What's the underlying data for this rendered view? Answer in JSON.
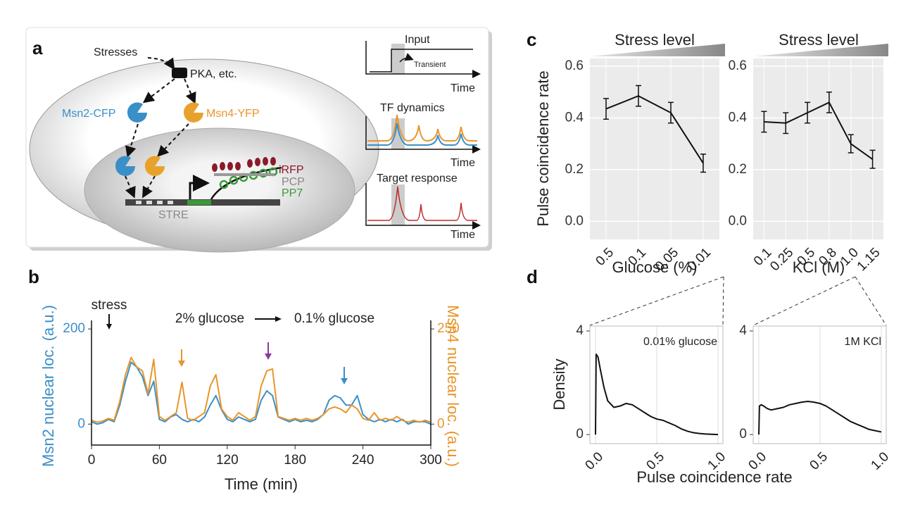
{
  "panels": [
    "a",
    "b",
    "c",
    "d"
  ],
  "diagram": {
    "stresses": "Stresses",
    "kinase": "PKA, etc.",
    "msn2": "Msn2-CFP",
    "msn4": "Msn4-YFP",
    "irfp": "iRFP",
    "pcp": "PCP",
    "pp7": "PP7",
    "stre": "STRE",
    "input": "Input",
    "transient": "Transient",
    "tf_dynamics": "TF dynamics",
    "target_response": "Target response",
    "time_axis": [
      "Time",
      "Time",
      "Time"
    ]
  },
  "chart_data": [
    {
      "type": "line",
      "xlabel": "Time (min)",
      "ylabel": "Msn2 nuclear loc. (a.u.)",
      "y2label": "Msn4 nuclear loc. (a.u.)",
      "annotations": [
        "stress",
        "2% glucose",
        "0.1% glucose"
      ],
      "x": [
        0,
        5,
        10,
        15,
        20,
        25,
        30,
        35,
        40,
        45,
        50,
        55,
        60,
        65,
        70,
        75,
        80,
        85,
        90,
        95,
        100,
        105,
        110,
        115,
        120,
        125,
        130,
        135,
        140,
        145,
        150,
        155,
        160,
        165,
        170,
        175,
        180,
        185,
        190,
        195,
        200,
        205,
        210,
        215,
        220,
        225,
        230,
        235,
        240,
        245,
        250,
        255,
        260,
        265,
        270,
        275,
        280,
        285,
        290,
        295,
        300
      ],
      "series": [
        {
          "name": "Msn2",
          "color": "#3a8fc8",
          "values": [
            5,
            0,
            3,
            10,
            5,
            40,
            90,
            130,
            120,
            100,
            60,
            90,
            10,
            5,
            15,
            20,
            10,
            5,
            10,
            5,
            15,
            40,
            60,
            30,
            10,
            5,
            15,
            10,
            5,
            10,
            50,
            70,
            60,
            15,
            10,
            5,
            10,
            5,
            8,
            5,
            10,
            20,
            50,
            60,
            55,
            40,
            40,
            60,
            20,
            10,
            5,
            10,
            5,
            10,
            5,
            10,
            0,
            5,
            5,
            5,
            0
          ]
        },
        {
          "name": "Msn4",
          "color": "#e8952b",
          "axis": "y2",
          "values": [
            10,
            5,
            8,
            15,
            10,
            60,
            130,
            175,
            150,
            140,
            80,
            170,
            20,
            10,
            20,
            30,
            110,
            15,
            10,
            20,
            30,
            100,
            130,
            40,
            20,
            10,
            30,
            20,
            10,
            20,
            100,
            140,
            145,
            20,
            15,
            10,
            15,
            10,
            15,
            10,
            15,
            25,
            40,
            45,
            40,
            30,
            50,
            40,
            15,
            10,
            30,
            10,
            15,
            10,
            20,
            10,
            5,
            10,
            5,
            10,
            5
          ]
        }
      ],
      "xlim": [
        0,
        300
      ],
      "xticks": [
        0,
        60,
        120,
        180,
        240,
        300
      ],
      "ylim": [
        -44,
        218
      ],
      "yticks": [
        0,
        200
      ],
      "y2lim": [
        -55,
        272.5
      ],
      "y2ticks": [
        0,
        250
      ],
      "grid": false
    },
    {
      "type": "line",
      "title": "Stress level",
      "xlabel": "Glucose (%)",
      "ylabel": "Pulse coincidence rate",
      "categories": [
        "0.5",
        "0.1",
        "0.05",
        "0.01"
      ],
      "values": [
        0.435,
        0.485,
        0.42,
        0.225
      ],
      "errors": [
        0.04,
        0.04,
        0.04,
        0.035
      ],
      "color": "#111111",
      "ylim": [
        -0.07,
        0.63
      ],
      "yticks": [
        {
          "value": 0,
          "label": "0.0"
        },
        0.2,
        0.4,
        0.6
      ],
      "grid": true,
      "background": "#ebebeb",
      "grid_color": "#ffffff",
      "xtick_rotation": 45
    },
    {
      "type": "line",
      "title": "Stress level",
      "xlabel": "KCl (M)",
      "categories": [
        "0.1",
        "0.25",
        "0.5",
        "0.8",
        "1.0",
        "1.15"
      ],
      "values": [
        0.385,
        0.38,
        0.42,
        0.46,
        0.3,
        0.24
      ],
      "errors": [
        0.04,
        0.04,
        0.04,
        0.04,
        0.035,
        0.035
      ],
      "color": "#111111",
      "ylim": [
        -0.07,
        0.63
      ],
      "yticks": [
        {
          "value": 0,
          "label": "0.0"
        },
        0.2,
        0.4,
        0.6
      ],
      "grid": true,
      "background": "#ebebeb",
      "grid_color": "#ffffff",
      "xtick_rotation": 45
    },
    {
      "type": "line",
      "xlabel": "Pulse coincidence rate",
      "ylabel": "Density",
      "annotation": "0.01% glucose",
      "x": [
        0,
        0.005,
        0.02,
        0.04,
        0.07,
        0.1,
        0.15,
        0.2,
        0.25,
        0.3,
        0.35,
        0.4,
        0.45,
        0.5,
        0.55,
        0.6,
        0.65,
        0.7,
        0.75,
        0.8,
        0.85,
        0.9,
        0.95,
        1.0
      ],
      "values": [
        0,
        3.1,
        3.0,
        2.5,
        1.8,
        1.3,
        1.05,
        1.1,
        1.2,
        1.15,
        1.0,
        0.85,
        0.7,
        0.6,
        0.55,
        0.45,
        0.35,
        0.22,
        0.13,
        0.07,
        0.04,
        0.02,
        0.01,
        0.0
      ],
      "color": "#111111",
      "xlim": [
        -0.046,
        1.04
      ],
      "xticks": [
        {
          "value": 0,
          "label": "0.0"
        },
        0.5,
        {
          "value": 1,
          "label": "1.0"
        }
      ],
      "ylim": [
        -0.35,
        4.19
      ],
      "yticks": [
        0,
        4
      ],
      "grid": "x",
      "grid_color": "#dddddd",
      "xtick_rotation": 45
    },
    {
      "type": "line",
      "annotation": "1M KCl",
      "x": [
        0,
        0.005,
        0.02,
        0.04,
        0.07,
        0.1,
        0.15,
        0.2,
        0.25,
        0.3,
        0.35,
        0.4,
        0.45,
        0.5,
        0.55,
        0.6,
        0.65,
        0.7,
        0.75,
        0.8,
        0.85,
        0.9,
        0.95,
        1.0
      ],
      "values": [
        0,
        1.1,
        1.15,
        1.1,
        1.0,
        0.95,
        1.0,
        1.05,
        1.15,
        1.2,
        1.25,
        1.28,
        1.25,
        1.2,
        1.1,
        0.95,
        0.8,
        0.65,
        0.5,
        0.4,
        0.3,
        0.2,
        0.15,
        0.1
      ],
      "color": "#111111",
      "xlim": [
        -0.046,
        1.04
      ],
      "xticks": [
        {
          "value": 0,
          "label": "0.0"
        },
        0.5,
        {
          "value": 1,
          "label": "1.0"
        }
      ],
      "ylim": [
        -0.35,
        4.19
      ],
      "yticks": [
        0,
        4
      ],
      "grid": "x",
      "grid_color": "#dddddd",
      "xtick_rotation": 45
    }
  ]
}
